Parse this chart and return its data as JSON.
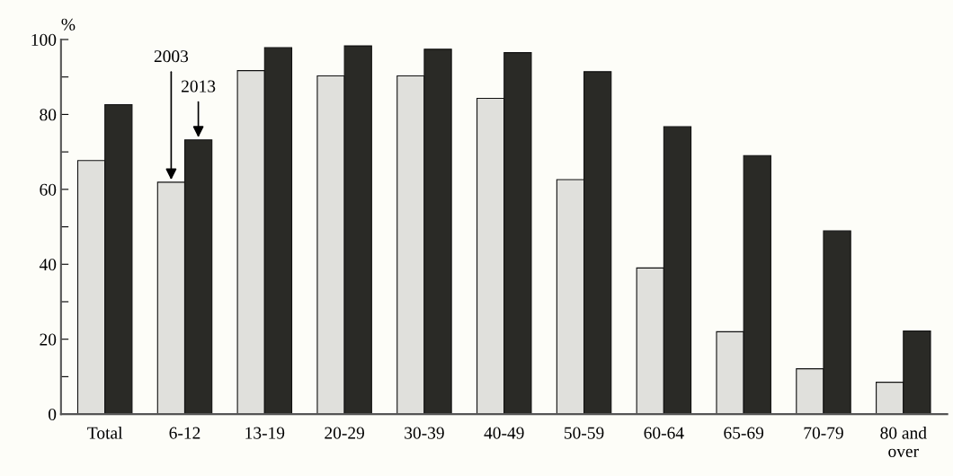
{
  "chart_data": {
    "type": "bar",
    "ylabel": "%",
    "categories": [
      "Total",
      "6-12",
      "13-19",
      "20-29",
      "30-39",
      "40-49",
      "50-59",
      "60-64",
      "65-69",
      "70-79",
      "80 and\nover"
    ],
    "series": [
      {
        "color": "#e0e0dc",
        "values": [
          67.7,
          61.9,
          91.7,
          90.3,
          90.3,
          84.3,
          62.6,
          39.0,
          22.0,
          12.1,
          8.5
        ]
      },
      {
        "color": "#2a2a26",
        "values": [
          82.6,
          73.2,
          97.8,
          98.3,
          97.4,
          96.5,
          91.4,
          76.7,
          69.0,
          48.9,
          22.2
        ]
      }
    ],
    "ylim": [
      0,
      100
    ],
    "yticks": [
      0,
      {
        "value": 10,
        "label": null
      },
      20,
      {
        "value": 30,
        "label": null
      },
      40,
      {
        "value": 50,
        "label": null
      },
      60,
      {
        "value": 70,
        "label": null
      },
      80,
      {
        "value": 90,
        "label": null
      },
      100
    ],
    "annotations": [
      "2003",
      "2013"
    ],
    "grid": false,
    "legend": false
  }
}
